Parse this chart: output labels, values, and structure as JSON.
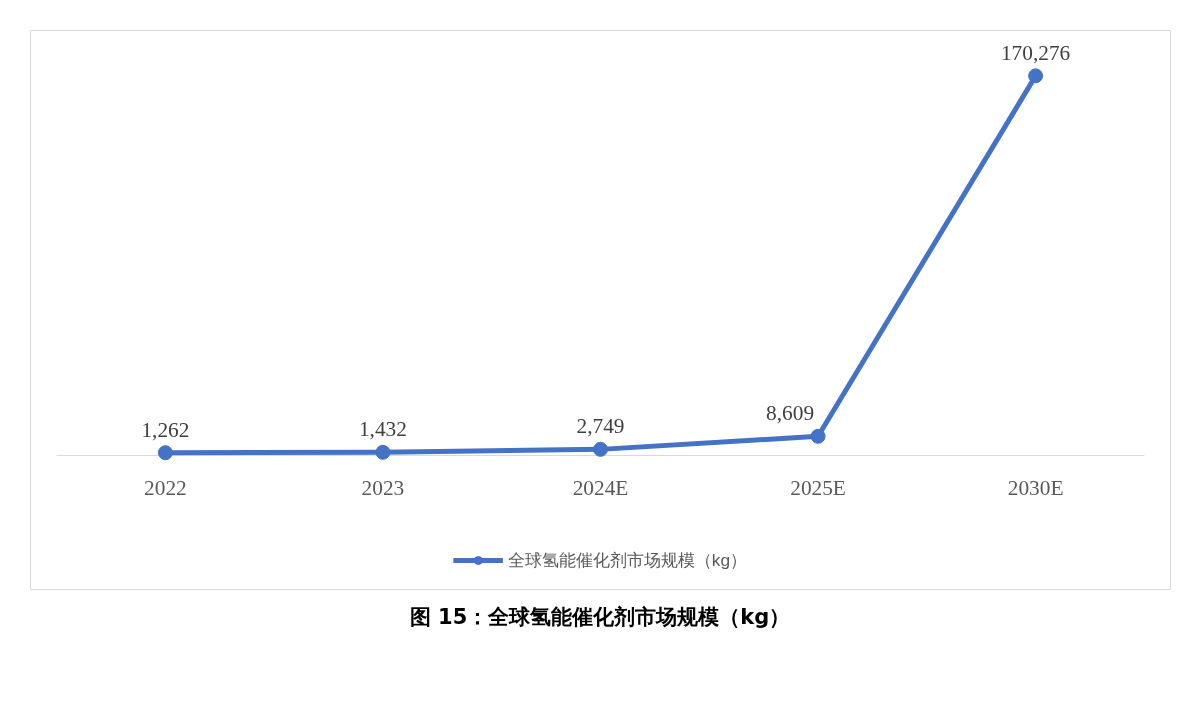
{
  "chart_data": {
    "type": "line",
    "title": "图 15：全球氢能催化剂市场规模（kg）",
    "categories": [
      "2022",
      "2023",
      "2024E",
      "2025E",
      "2030E"
    ],
    "series": [
      {
        "name": "全球氢能催化剂市场规模（kg）",
        "color": "#4472c4",
        "values": [
          1262,
          1432,
          2749,
          8609,
          170276
        ],
        "value_labels": [
          "1,262",
          "1,432",
          "2,749",
          "8,609",
          "170,276"
        ]
      }
    ],
    "legend": "bottom",
    "marker": "circle",
    "line_style": "solid",
    "grid": false
  }
}
